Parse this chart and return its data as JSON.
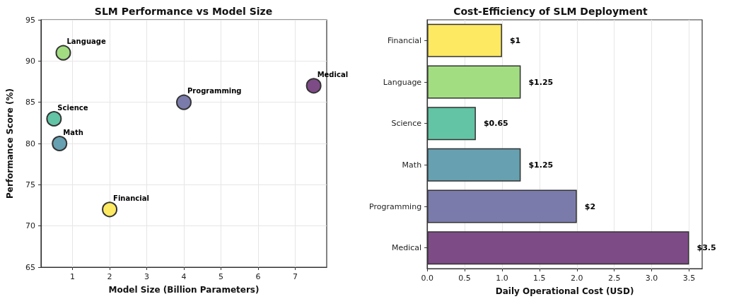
{
  "chart_data": [
    {
      "type": "scatter",
      "title": "SLM Performance vs Model Size",
      "xlabel": "Model Size (Billion Parameters)",
      "ylabel": "Performance Score (%)",
      "xlim": [
        0.15,
        7.85
      ],
      "xticks": [
        1,
        2,
        3,
        4,
        5,
        6,
        7
      ],
      "ylim": [
        65,
        95
      ],
      "yticks": [
        65,
        70,
        75,
        80,
        85,
        90,
        95
      ],
      "grid": true,
      "legend": false,
      "marker": "circle",
      "series": [
        {
          "name": "Medical",
          "color": "#7d4b86",
          "x": [
            7.5
          ],
          "values": [
            87
          ]
        },
        {
          "name": "Programming",
          "color": "#7b7bab",
          "x": [
            4
          ],
          "values": [
            85
          ]
        },
        {
          "name": "Math",
          "color": "#67a0b0",
          "x": [
            0.65
          ],
          "values": [
            80
          ]
        },
        {
          "name": "Science",
          "color": "#62c4a5",
          "x": [
            0.5
          ],
          "values": [
            83
          ]
        },
        {
          "name": "Language",
          "color": "#a2dd82",
          "x": [
            0.75
          ],
          "values": [
            91
          ]
        },
        {
          "name": "Financial",
          "color": "#fee962",
          "x": [
            2
          ],
          "values": [
            72
          ]
        }
      ]
    },
    {
      "type": "bar",
      "orientation": "horizontal",
      "title": "Cost-Efficiency of SLM Deployment",
      "xlabel": "Daily Operational Cost (USD)",
      "categories": [
        "Financial",
        "Language",
        "Science",
        "Math",
        "Programming",
        "Medical"
      ],
      "values": [
        1,
        1.25,
        0.65,
        1.25,
        2,
        3.5
      ],
      "value_labels": [
        "$1",
        "$1.25",
        "$0.65",
        "$1.25",
        "$2",
        "$3.5"
      ],
      "colors": [
        "#fee962",
        "#a2dd82",
        "#62c4a5",
        "#67a0b0",
        "#7b7bab",
        "#7d4b86"
      ],
      "xlim": [
        0,
        3.675
      ],
      "xticks": [
        {
          "value": 0,
          "label": "0.0"
        },
        {
          "value": 0.5,
          "label": "0.5"
        },
        {
          "value": 1,
          "label": "1.0"
        },
        {
          "value": 1.5,
          "label": "1.5"
        },
        {
          "value": 2,
          "label": "2.0"
        },
        {
          "value": 2.5,
          "label": "2.5"
        },
        {
          "value": 3,
          "label": "3.0"
        },
        {
          "value": 3.5,
          "label": "3.5"
        }
      ],
      "grid": "x",
      "legend": false
    }
  ]
}
